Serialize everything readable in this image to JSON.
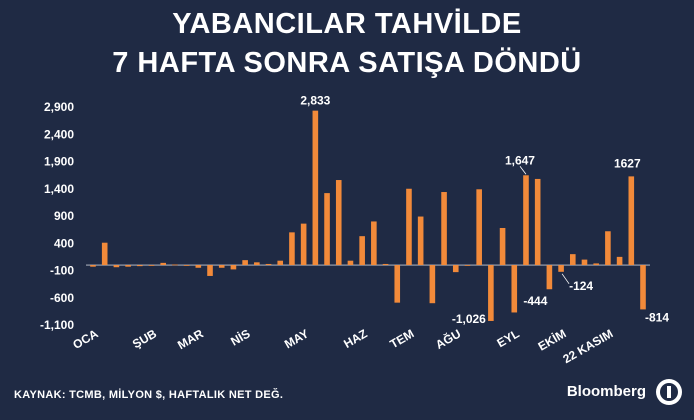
{
  "header": {
    "title_line1": "YABANCILAR TAHVİLDE",
    "title_line2": "7 HAFTA SONRA SATIŞA DÖNDÜ"
  },
  "footer": {
    "source": "KAYNAK: TCMB, MİLYON $, HAFTALIK NET DEĞ.",
    "brand": "Bloomberg"
  },
  "colors": {
    "background": "#1f2a44",
    "bar": "#f28a3a",
    "text": "#ffffff"
  },
  "chart_data": {
    "type": "bar",
    "title": "YABANCILAR TAHVİLDE 7 HAFTA SONRA SATIŞA DÖNDÜ",
    "ylim": [
      -1100,
      2900
    ],
    "yticks": [
      2900,
      2400,
      1900,
      1400,
      900,
      400,
      -100,
      -600,
      -1100
    ],
    "ytick_labels": [
      "2,900",
      "2,400",
      "1,900",
      "1,400",
      "900",
      "400",
      "-100",
      "-600",
      "-1,100"
    ],
    "month_labels": [
      {
        "label": "OCA",
        "index": 0
      },
      {
        "label": "ŞUB",
        "index": 5
      },
      {
        "label": "MAR",
        "index": 9
      },
      {
        "label": "NİS",
        "index": 13
      },
      {
        "label": "MAY",
        "index": 18
      },
      {
        "label": "HAZ",
        "index": 23
      },
      {
        "label": "TEM",
        "index": 27
      },
      {
        "label": "AĞU",
        "index": 31
      },
      {
        "label": "EYL",
        "index": 36
      },
      {
        "label": "EKİM",
        "index": 40
      },
      {
        "label": "22 KASIM",
        "index": 44
      }
    ],
    "values": [
      -30,
      410,
      -40,
      -30,
      -20,
      -10,
      40,
      10,
      -10,
      -50,
      -200,
      -50,
      -80,
      90,
      50,
      20,
      80,
      600,
      760,
      2833,
      1320,
      1560,
      80,
      530,
      800,
      20,
      -690,
      1400,
      890,
      -700,
      1340,
      -130,
      -10,
      1390,
      -1026,
      680,
      -870,
      1647,
      1580,
      -444,
      -124,
      200,
      100,
      30,
      620,
      150,
      1627,
      -814
    ],
    "data_labels": [
      {
        "index": 19,
        "text": "2,833"
      },
      {
        "index": 34,
        "text": "-1,026"
      },
      {
        "index": 37,
        "text": "1,647"
      },
      {
        "index": 39,
        "text": "-444"
      },
      {
        "index": 40,
        "text": "-124"
      },
      {
        "index": 46,
        "text": "1627"
      },
      {
        "index": 47,
        "text": "-814"
      }
    ]
  }
}
